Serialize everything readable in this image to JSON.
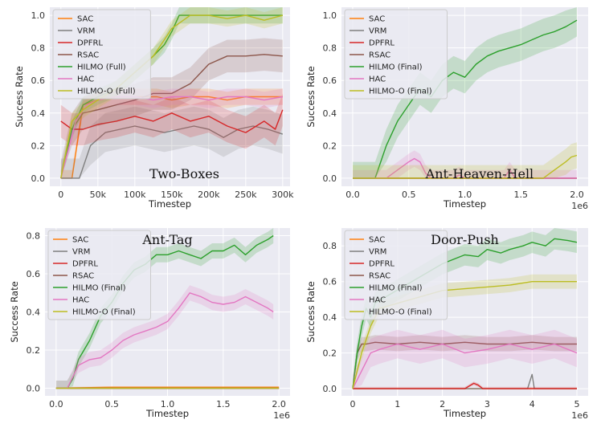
{
  "colors": {
    "SAC": "#ff7f0e",
    "VRM": "#7f7f7f",
    "DPFRL": "#d62728",
    "RSAC": "#8c564b",
    "HILMO": "#2ca02c",
    "HAC": "#e377c2",
    "HILMO-O": "#bcbd22",
    "panel_bg": "#eaeaf2",
    "grid": "#ffffff"
  },
  "chart_data": [
    {
      "type": "line",
      "title": "Two-Boxes",
      "xlabel": "Timestep",
      "ylabel": "Success Rate",
      "xlim": [
        -15000,
        310000
      ],
      "ylim": [
        -0.05,
        1.05
      ],
      "xticks": [
        0,
        50000,
        100000,
        150000,
        200000,
        250000,
        300000
      ],
      "xtick_labels": [
        "0",
        "50k",
        "100k",
        "150k",
        "200k",
        "250k",
        "300k"
      ],
      "yticks": [
        0.0,
        0.2,
        0.4,
        0.6,
        0.8,
        1.0
      ],
      "ytick_labels": [
        "0.0",
        "0.2",
        "0.4",
        "0.6",
        "0.8",
        "1.0"
      ],
      "x_offset": "",
      "legend": [
        "SAC",
        "VRM",
        "DPFRL",
        "RSAC",
        "HILMO (Full)",
        "HAC",
        "HILMO-O (Full)"
      ],
      "legend_colors": [
        "SAC",
        "VRM",
        "DPFRL",
        "RSAC",
        "HILMO",
        "HAC",
        "HILMO-O"
      ],
      "legend_position": "top-left",
      "title_position": "bottom-right",
      "series": [
        {
          "name": "SAC",
          "color": "SAC",
          "x": [
            0,
            15000,
            30000,
            50000,
            75000,
            100000,
            130000,
            150000,
            175000,
            200000,
            225000,
            250000,
            275000,
            300000
          ],
          "y": [
            0.0,
            0.0,
            0.45,
            0.48,
            0.5,
            0.5,
            0.5,
            0.48,
            0.5,
            0.5,
            0.48,
            0.5,
            0.5,
            0.5
          ],
          "band": 0.05
        },
        {
          "name": "VRM",
          "color": "VRM",
          "x": [
            0,
            25000,
            40000,
            60000,
            80000,
            100000,
            120000,
            140000,
            160000,
            180000,
            200000,
            220000,
            240000,
            260000,
            280000,
            300000
          ],
          "y": [
            0.0,
            0.0,
            0.2,
            0.28,
            0.3,
            0.32,
            0.3,
            0.28,
            0.3,
            0.32,
            0.3,
            0.25,
            0.3,
            0.32,
            0.3,
            0.27
          ],
          "band": 0.12
        },
        {
          "name": "DPFRL",
          "color": "DPFRL",
          "x": [
            0,
            15000,
            30000,
            50000,
            75000,
            100000,
            125000,
            150000,
            175000,
            200000,
            225000,
            250000,
            275000,
            290000,
            300000
          ],
          "y": [
            0.35,
            0.3,
            0.3,
            0.33,
            0.35,
            0.38,
            0.35,
            0.4,
            0.35,
            0.38,
            0.32,
            0.28,
            0.35,
            0.3,
            0.42
          ],
          "band": 0.1
        },
        {
          "name": "RSAC",
          "color": "RSAC",
          "x": [
            0,
            15000,
            30000,
            50000,
            75000,
            100000,
            125000,
            150000,
            175000,
            200000,
            225000,
            250000,
            275000,
            300000
          ],
          "y": [
            0.0,
            0.3,
            0.4,
            0.42,
            0.45,
            0.48,
            0.52,
            0.52,
            0.58,
            0.7,
            0.75,
            0.75,
            0.76,
            0.75
          ],
          "band": 0.1
        },
        {
          "name": "HILMO (Full)",
          "color": "HILMO",
          "x": [
            0,
            15000,
            30000,
            50000,
            75000,
            100000,
            125000,
            140000,
            150000,
            160000,
            175000,
            200000,
            225000,
            250000,
            275000,
            300000
          ],
          "y": [
            0.0,
            0.3,
            0.45,
            0.5,
            0.55,
            0.65,
            0.75,
            0.82,
            0.9,
            1.0,
            1.0,
            1.0,
            1.0,
            1.0,
            1.0,
            1.0
          ],
          "band": 0.05
        },
        {
          "name": "HAC",
          "color": "HAC",
          "x": [
            0,
            20000,
            35000,
            50000,
            75000,
            100000,
            125000,
            150000,
            175000,
            200000,
            225000,
            250000,
            275000,
            300000
          ],
          "y": [
            0.0,
            0.35,
            0.45,
            0.48,
            0.5,
            0.5,
            0.48,
            0.5,
            0.5,
            0.48,
            0.5,
            0.5,
            0.48,
            0.5
          ],
          "band": 0.05
        },
        {
          "name": "HILMO-O (Full)",
          "color": "HILMO-O",
          "x": [
            0,
            15000,
            30000,
            50000,
            75000,
            100000,
            125000,
            140000,
            150000,
            175000,
            200000,
            225000,
            250000,
            275000,
            300000
          ],
          "y": [
            0.0,
            0.35,
            0.42,
            0.48,
            0.55,
            0.65,
            0.75,
            0.85,
            0.92,
            1.0,
            1.0,
            0.98,
            1.0,
            0.97,
            1.0
          ],
          "band": 0.05
        }
      ]
    },
    {
      "type": "line",
      "title": "Ant-Heaven-Hell",
      "xlabel": "Timestep",
      "ylabel": "Success Rate",
      "xlim": [
        -100000,
        2100000
      ],
      "ylim": [
        -0.05,
        1.05
      ],
      "xticks": [
        0,
        500000,
        1000000,
        1500000,
        2000000
      ],
      "xtick_labels": [
        "0.0",
        "0.5",
        "1.0",
        "1.5",
        "2.0"
      ],
      "yticks": [
        0.0,
        0.2,
        0.4,
        0.6,
        0.8,
        1.0
      ],
      "ytick_labels": [
        "0.0",
        "0.2",
        "0.4",
        "0.6",
        "0.8",
        "1.0"
      ],
      "x_offset": "1e6",
      "legend": [
        "SAC",
        "VRM",
        "DPFRL",
        "RSAC",
        "HILMO (Final)",
        "HAC",
        "HILMO-O (Final)"
      ],
      "legend_colors": [
        "SAC",
        "VRM",
        "DPFRL",
        "RSAC",
        "HILMO",
        "HAC",
        "HILMO-O"
      ],
      "legend_position": "top-left",
      "title_position": "bottom-right",
      "series": [
        {
          "name": "SAC",
          "color": "SAC",
          "x": [
            0,
            2000000
          ],
          "y": [
            0.0,
            0.0
          ],
          "band": 0
        },
        {
          "name": "VRM",
          "color": "VRM",
          "x": [
            0,
            2000000
          ],
          "y": [
            0.0,
            0.0
          ],
          "band": 0
        },
        {
          "name": "DPFRL",
          "color": "DPFRL",
          "x": [
            0,
            2000000
          ],
          "y": [
            0.0,
            0.0
          ],
          "band": 0
        },
        {
          "name": "RSAC",
          "color": "RSAC",
          "x": [
            0,
            2000000
          ],
          "y": [
            0.0,
            0.0
          ],
          "band": 0
        },
        {
          "name": "HILMO (Final)",
          "color": "HILMO",
          "x": [
            0,
            200000,
            300000,
            400000,
            500000,
            600000,
            700000,
            800000,
            900000,
            1000000,
            1100000,
            1200000,
            1300000,
            1400000,
            1500000,
            1600000,
            1700000,
            1800000,
            1900000,
            2000000
          ],
          "y": [
            0.0,
            0.0,
            0.2,
            0.35,
            0.45,
            0.55,
            0.5,
            0.6,
            0.65,
            0.62,
            0.7,
            0.75,
            0.78,
            0.8,
            0.82,
            0.85,
            0.88,
            0.9,
            0.93,
            0.97
          ],
          "band": 0.1
        },
        {
          "name": "HAC",
          "color": "HAC",
          "x": [
            0,
            300000,
            400000,
            500000,
            550000,
            600000,
            650000,
            700000,
            900000,
            950000,
            1000000,
            1350000,
            1400000,
            1450000,
            1500000,
            2000000
          ],
          "y": [
            0.0,
            0.0,
            0.05,
            0.1,
            0.12,
            0.1,
            0.03,
            0.0,
            0.0,
            0.02,
            0.0,
            0.0,
            0.05,
            0.0,
            0.0,
            0.0
          ],
          "band": 0.05
        },
        {
          "name": "HILMO-O (Final)",
          "color": "HILMO-O",
          "x": [
            0,
            1700000,
            1800000,
            1900000,
            1950000,
            2000000
          ],
          "y": [
            0.0,
            0.0,
            0.05,
            0.1,
            0.13,
            0.14
          ],
          "band": 0.08
        }
      ]
    },
    {
      "type": "line",
      "title": "Ant-Tag",
      "xlabel": "Timestep",
      "ylabel": "Success Rate",
      "xlim": [
        -100000,
        2100000
      ],
      "ylim": [
        -0.04,
        0.84
      ],
      "xticks": [
        0,
        500000,
        1000000,
        1500000,
        2000000
      ],
      "xtick_labels": [
        "0.0",
        "0.5",
        "1.0",
        "1.5",
        "2.0"
      ],
      "yticks": [
        0.0,
        0.2,
        0.4,
        0.6,
        0.8
      ],
      "ytick_labels": [
        "0.0",
        "0.2",
        "0.4",
        "0.6",
        "0.8"
      ],
      "x_offset": "1e6",
      "legend": [
        "SAC",
        "VRM",
        "DPFRL",
        "RSAC",
        "HILMO (Final)",
        "HAC",
        "HILMO-O (Final)"
      ],
      "legend_colors": [
        "SAC",
        "VRM",
        "DPFRL",
        "RSAC",
        "HILMO",
        "HAC",
        "HILMO-O"
      ],
      "legend_position": "top-left",
      "title_position": "top-center",
      "series": [
        {
          "name": "SAC",
          "color": "SAC",
          "x": [
            0,
            500000,
            1000000,
            1500000,
            2000000
          ],
          "y": [
            0.0,
            0.005,
            0.005,
            0.005,
            0.005
          ],
          "band": 0.005
        },
        {
          "name": "VRM",
          "color": "VRM",
          "x": [
            0,
            2000000
          ],
          "y": [
            0.0,
            0.0
          ],
          "band": 0
        },
        {
          "name": "DPFRL",
          "color": "DPFRL",
          "x": [
            0,
            2000000
          ],
          "y": [
            0.0,
            0.0
          ],
          "band": 0
        },
        {
          "name": "RSAC",
          "color": "RSAC",
          "x": [
            0,
            2000000
          ],
          "y": [
            0.0,
            0.0
          ],
          "band": 0
        },
        {
          "name": "HILMO (Final)",
          "color": "HILMO",
          "x": [
            0,
            100000,
            150000,
            200000,
            300000,
            400000,
            500000,
            600000,
            700000,
            800000,
            900000,
            1000000,
            1100000,
            1200000,
            1300000,
            1400000,
            1500000,
            1600000,
            1700000,
            1800000,
            1900000,
            1950000
          ],
          "y": [
            0.0,
            0.0,
            0.05,
            0.15,
            0.25,
            0.38,
            0.45,
            0.55,
            0.62,
            0.65,
            0.7,
            0.7,
            0.72,
            0.7,
            0.68,
            0.72,
            0.72,
            0.75,
            0.7,
            0.75,
            0.78,
            0.8
          ],
          "band": 0.04
        },
        {
          "name": "HAC",
          "color": "HAC",
          "x": [
            0,
            100000,
            200000,
            300000,
            400000,
            500000,
            600000,
            700000,
            800000,
            900000,
            1000000,
            1100000,
            1200000,
            1300000,
            1400000,
            1500000,
            1600000,
            1700000,
            1800000,
            1900000,
            1950000
          ],
          "y": [
            0.0,
            0.0,
            0.12,
            0.15,
            0.16,
            0.2,
            0.25,
            0.28,
            0.3,
            0.32,
            0.35,
            0.42,
            0.5,
            0.48,
            0.45,
            0.44,
            0.45,
            0.48,
            0.45,
            0.42,
            0.4
          ],
          "band": 0.04
        },
        {
          "name": "HILMO-O (Final)",
          "color": "HILMO-O",
          "x": [
            0,
            2000000
          ],
          "y": [
            0.0,
            0.0
          ],
          "band": 0
        }
      ]
    },
    {
      "type": "line",
      "title": "Door-Push",
      "xlabel": "Timestep",
      "ylabel": "Success Rate",
      "xlim": [
        -250000,
        5250000
      ],
      "ylim": [
        -0.04,
        0.9
      ],
      "xticks": [
        0,
        1000000,
        2000000,
        3000000,
        4000000,
        5000000
      ],
      "xtick_labels": [
        "0",
        "1",
        "2",
        "3",
        "4",
        "5"
      ],
      "yticks": [
        0.0,
        0.2,
        0.4,
        0.6,
        0.8
      ],
      "ytick_labels": [
        "0.0",
        "0.2",
        "0.4",
        "0.6",
        "0.8"
      ],
      "x_offset": "1e6",
      "legend": [
        "SAC",
        "VRM",
        "DPFRL",
        "RSAC",
        "HILMO (Final)",
        "HAC",
        "HILMO-O (Final)"
      ],
      "legend_colors": [
        "SAC",
        "VRM",
        "DPFRL",
        "RSAC",
        "HILMO",
        "HAC",
        "HILMO-O"
      ],
      "legend_position": "top-left",
      "title_position": "top-center",
      "series": [
        {
          "name": "SAC",
          "color": "SAC",
          "x": [
            0,
            5000000
          ],
          "y": [
            0.0,
            0.0
          ],
          "band": 0
        },
        {
          "name": "VRM",
          "color": "VRM",
          "x": [
            0,
            3900000,
            4000000,
            4050000,
            4100000,
            5000000
          ],
          "y": [
            0.0,
            0.0,
            0.08,
            0.0,
            0.0,
            0.0
          ],
          "band": 0
        },
        {
          "name": "DPFRL",
          "color": "DPFRL",
          "x": [
            0,
            2500000,
            2700000,
            2800000,
            2900000,
            5000000
          ],
          "y": [
            0.0,
            0.0,
            0.03,
            0.02,
            0.0,
            0.0
          ],
          "band": 0.01
        },
        {
          "name": "RSAC",
          "color": "RSAC",
          "x": [
            0,
            100000,
            200000,
            300000,
            500000,
            1000000,
            1500000,
            2000000,
            2500000,
            3000000,
            3500000,
            4000000,
            4500000,
            5000000
          ],
          "y": [
            0.0,
            0.2,
            0.25,
            0.25,
            0.26,
            0.25,
            0.26,
            0.25,
            0.26,
            0.25,
            0.25,
            0.26,
            0.25,
            0.25
          ],
          "band": 0.04
        },
        {
          "name": "HILMO (Final)",
          "color": "HILMO",
          "x": [
            0,
            100000,
            200000,
            300000,
            400000,
            500000,
            2000000,
            2200000,
            2500000,
            2800000,
            3000000,
            3300000,
            3500000,
            3800000,
            4000000,
            4300000,
            4500000,
            4800000,
            5000000
          ],
          "y": [
            0.0,
            0.2,
            0.35,
            0.45,
            0.4,
            0.48,
            0.7,
            0.72,
            0.75,
            0.74,
            0.78,
            0.76,
            0.78,
            0.8,
            0.82,
            0.8,
            0.84,
            0.83,
            0.82
          ],
          "band": 0.06
        },
        {
          "name": "HAC",
          "color": "HAC",
          "x": [
            0,
            200000,
            400000,
            600000,
            1000000,
            1500000,
            2000000,
            2500000,
            3000000,
            3500000,
            4000000,
            4500000,
            5000000
          ],
          "y": [
            0.0,
            0.1,
            0.2,
            0.22,
            0.25,
            0.22,
            0.25,
            0.2,
            0.22,
            0.25,
            0.22,
            0.25,
            0.2
          ],
          "band": 0.08
        },
        {
          "name": "HILMO-O (Final)",
          "color": "HILMO-O",
          "x": [
            0,
            200000,
            400000,
            600000,
            2000000,
            2500000,
            3000000,
            3500000,
            4000000,
            4500000,
            5000000
          ],
          "y": [
            0.0,
            0.2,
            0.35,
            0.45,
            0.55,
            0.56,
            0.57,
            0.58,
            0.6,
            0.6,
            0.6
          ],
          "band": 0.04
        }
      ]
    }
  ]
}
